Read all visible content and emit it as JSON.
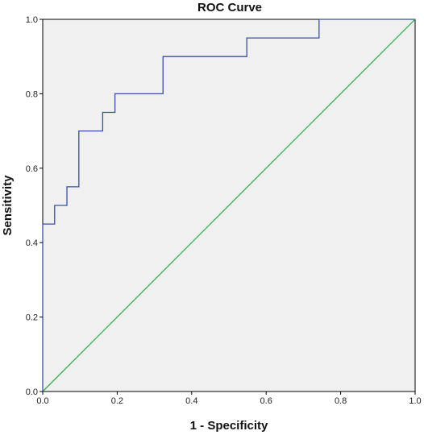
{
  "chart_data": {
    "type": "line",
    "title": "ROC Curve",
    "xlabel": "1 - Specificity",
    "ylabel": "Sensitivity",
    "xlim": [
      0,
      1
    ],
    "ylim": [
      0,
      1
    ],
    "x_ticks": [
      "0.0",
      "0.2",
      "0.4",
      "0.6",
      "0.8",
      "1.0"
    ],
    "y_ticks": [
      "0.0",
      "0.2",
      "0.4",
      "0.6",
      "0.8",
      "1.0"
    ],
    "grid": false,
    "legend": "none",
    "plot_background": "#f0f0f0",
    "series": [
      {
        "color": "#3a4fa0",
        "style": "step",
        "points": [
          [
            0.0,
            0.0
          ],
          [
            0.0,
            0.45
          ],
          [
            0.032,
            0.45
          ],
          [
            0.032,
            0.5
          ],
          [
            0.065,
            0.5
          ],
          [
            0.065,
            0.55
          ],
          [
            0.097,
            0.55
          ],
          [
            0.097,
            0.7
          ],
          [
            0.161,
            0.7
          ],
          [
            0.161,
            0.75
          ],
          [
            0.194,
            0.75
          ],
          [
            0.194,
            0.8
          ],
          [
            0.323,
            0.8
          ],
          [
            0.323,
            0.9
          ],
          [
            0.548,
            0.9
          ],
          [
            0.548,
            0.95
          ],
          [
            0.742,
            0.95
          ],
          [
            0.742,
            1.0
          ],
          [
            1.0,
            1.0
          ]
        ]
      },
      {
        "color": "#2db34a",
        "style": "reference",
        "points": [
          [
            0,
            0
          ],
          [
            1,
            1
          ]
        ]
      }
    ]
  }
}
